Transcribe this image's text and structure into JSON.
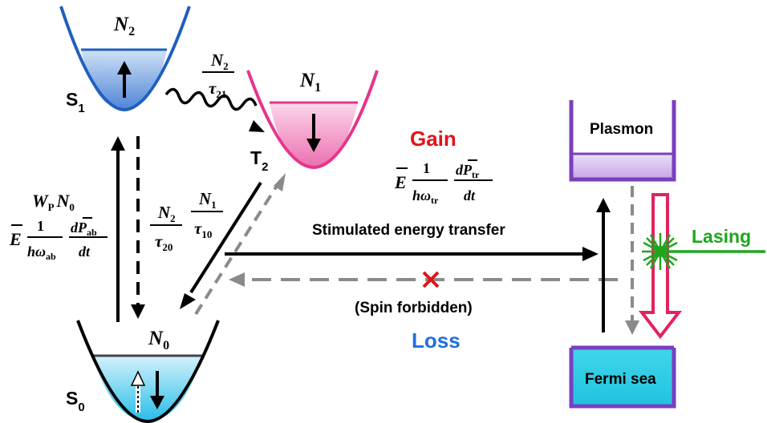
{
  "states": {
    "s1": {
      "label": "S",
      "sub": "1",
      "pop": "N",
      "pop_sub": "2"
    },
    "t2": {
      "label": "T",
      "sub": "2",
      "pop": "N",
      "pop_sub": "1"
    },
    "s0": {
      "label": "S",
      "sub": "0",
      "pop": "N",
      "pop_sub": "0"
    }
  },
  "rates": {
    "n2_tau21": {
      "num": "N",
      "num_sub": "2",
      "den": "τ",
      "den_sub": "21"
    },
    "n2_tau20": {
      "num": "N",
      "num_sub": "2",
      "den": "τ",
      "den_sub": "20"
    },
    "n1_tau10": {
      "num": "N",
      "num_sub": "1",
      "den": "τ",
      "den_sub": "10"
    },
    "pump": {
      "w": "W",
      "w_sub": "P",
      "n": "N",
      "n_sub": "0"
    },
    "absorption": {
      "e": "E",
      "one": "1",
      "hw": "hω",
      "hw_sub": "ab",
      "dp": "dP",
      "dp_sub": "ab",
      "dt": "dt"
    },
    "transfer": {
      "e": "E",
      "one": "1",
      "hw": "hω",
      "hw_sub": "tr",
      "dp": "dP",
      "dp_sub": "tr",
      "dt": "dt"
    }
  },
  "labels": {
    "gain": "Gain",
    "loss": "Loss",
    "stimulated": "Stimulated energy transfer",
    "spin_forbidden": "(Spin forbidden)",
    "plasmon": "Plasmon",
    "fermi_sea": "Fermi sea",
    "lasing": "Lasing"
  },
  "colors": {
    "s1_well": "#1f5fbf",
    "t2_well": "#e8338a",
    "s0_well": "#1a5ab8",
    "box": "#7a3fc0",
    "gain": "#e0141a",
    "loss": "#1f6fe0",
    "lasing": "#1fa51f",
    "lasing_arrow": "#e0245e"
  }
}
